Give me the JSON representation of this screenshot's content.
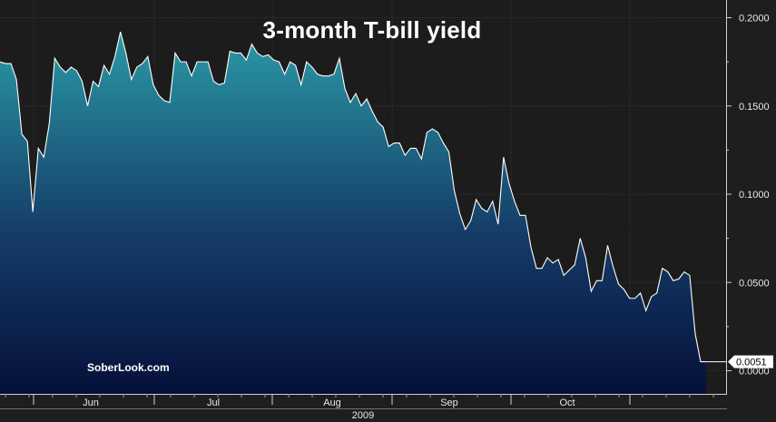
{
  "chart_data": {
    "type": "area",
    "title": "3-month T-bill yield",
    "watermark": "SoberLook.com",
    "xlabel": "2009",
    "ylabel": "",
    "ylim": [
      -0.0125,
      0.2075
    ],
    "yticks": [
      {
        "value": 0.2,
        "label": "0.2000"
      },
      {
        "value": 0.15,
        "label": "0.1500"
      },
      {
        "value": 0.1,
        "label": "0.1000"
      },
      {
        "value": 0.05,
        "label": "0.0500"
      },
      {
        "value": 0.0,
        "label": "0.0000"
      }
    ],
    "month_labels": [
      "Jun",
      "Jul",
      "Aug",
      "Sep",
      "Oct"
    ],
    "last_value_label": "0.0051",
    "grid": true,
    "colors": {
      "background": "#1c1c1c",
      "grid": "#3a3a3a",
      "line": "#ffffff",
      "fill_top": "#2a9aa6",
      "fill_bottom": "#05103a"
    },
    "series": [
      {
        "values": [
          0.175,
          0.174,
          0.174,
          0.165,
          0.134,
          0.13,
          0.09,
          0.126,
          0.121,
          0.14,
          0.177,
          0.172,
          0.169,
          0.172,
          0.17,
          0.164,
          0.15,
          0.164,
          0.161,
          0.173,
          0.168,
          0.178,
          0.192,
          0.18,
          0.165,
          0.172,
          0.174,
          0.178,
          0.162,
          0.156,
          0.153,
          0.152,
          0.18,
          0.175,
          0.175,
          0.167,
          0.175,
          0.175,
          0.175,
          0.164,
          0.162,
          0.163,
          0.181,
          0.18,
          0.18,
          0.176,
          0.185,
          0.18,
          0.178,
          0.179,
          0.176,
          0.175,
          0.168,
          0.175,
          0.173,
          0.162,
          0.175,
          0.172,
          0.168,
          0.167,
          0.167,
          0.168,
          0.177,
          0.16,
          0.152,
          0.157,
          0.15,
          0.154,
          0.147,
          0.141,
          0.138,
          0.127,
          0.129,
          0.129,
          0.122,
          0.126,
          0.126,
          0.12,
          0.135,
          0.137,
          0.135,
          0.129,
          0.124,
          0.102,
          0.089,
          0.08,
          0.085,
          0.097,
          0.092,
          0.09,
          0.096,
          0.083,
          0.121,
          0.106,
          0.096,
          0.088,
          0.088,
          0.07,
          0.058,
          0.058,
          0.064,
          0.061,
          0.063,
          0.054,
          0.057,
          0.06,
          0.075,
          0.064,
          0.045,
          0.051,
          0.051,
          0.071,
          0.059,
          0.049,
          0.046,
          0.041,
          0.041,
          0.044,
          0.034,
          0.042,
          0.044,
          0.058,
          0.056,
          0.051,
          0.052,
          0.056,
          0.054,
          0.021,
          0.0051,
          0.0051
        ]
      }
    ]
  }
}
